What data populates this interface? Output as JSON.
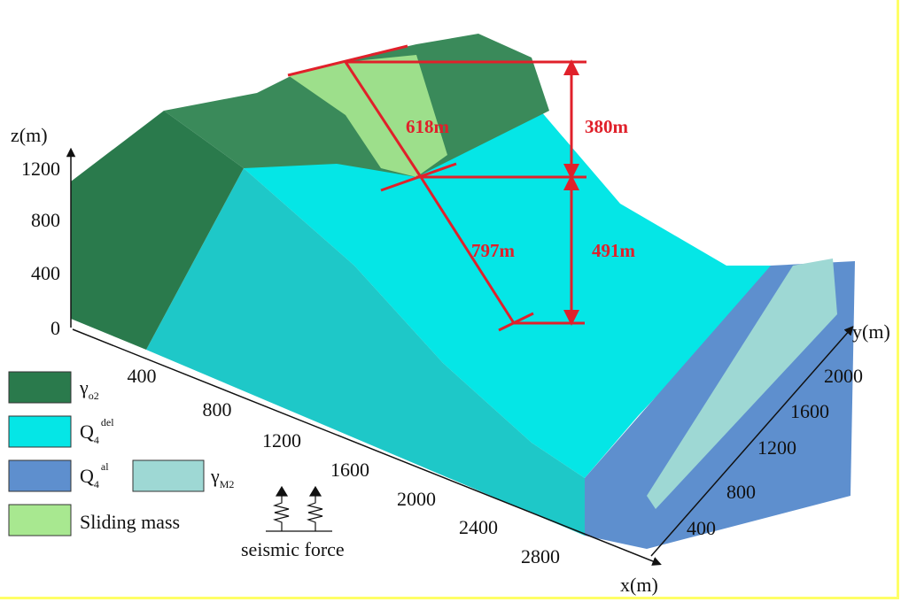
{
  "axes": {
    "z": {
      "label": "z(m)",
      "ticks": [
        0,
        400,
        800,
        1200
      ]
    },
    "x": {
      "label": "x(m)",
      "ticks": [
        400,
        800,
        1200,
        1600,
        2000,
        2400,
        2800
      ]
    },
    "y": {
      "label": "y(m)",
      "ticks": [
        400,
        800,
        1200,
        1600,
        2000
      ]
    }
  },
  "dimensions": [
    "618m",
    "380m",
    "797m",
    "491m"
  ],
  "legend": [
    {
      "symbol": "γ",
      "sub": "o2"
    },
    {
      "symbol": "Q",
      "sub": "4",
      "sup": "del"
    },
    {
      "symbol": "Q",
      "sub": "4",
      "sup": "al"
    },
    {
      "symbol": "γ",
      "sub": "M2"
    },
    {
      "label": "Sliding mass"
    }
  ],
  "annotation": "seismic force"
}
